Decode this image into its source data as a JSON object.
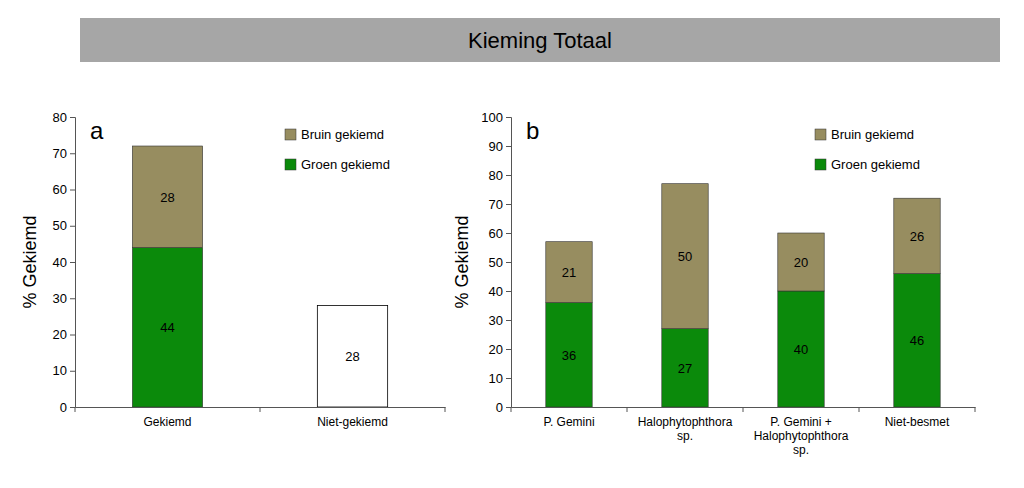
{
  "title": "Kieming Totaal",
  "chart_data": [
    {
      "type": "bar",
      "stacked": true,
      "data_labels": true,
      "grid": false,
      "legend": "top-right",
      "annotations": [
        "a"
      ],
      "y_label": "% Gekiemd",
      "categories": [
        "Gekiemd",
        "Niet-gekiemd"
      ],
      "ylim": [
        0,
        80
      ],
      "yticks": [
        0,
        10,
        20,
        30,
        40,
        50,
        60,
        70,
        80
      ],
      "series": [
        {
          "name": "Groen gekiemd",
          "color": "#0b8a0b",
          "values": [
            44,
            null
          ]
        },
        {
          "name": "Bruin gekiemd",
          "color": "#978d60",
          "values": [
            28,
            null
          ]
        },
        {
          "color": "#ffffff",
          "values": [
            null,
            28
          ]
        }
      ]
    },
    {
      "type": "bar",
      "stacked": true,
      "data_labels": true,
      "grid": false,
      "legend": "top-right",
      "annotations": [
        "b"
      ],
      "y_label": "% Gekiemd",
      "categories": [
        "P. Gemini",
        "Halophytophthora\nsp.",
        "P. Gemini +\nHalophytophthora\nsp.",
        "Niet-besmet"
      ],
      "ylim": [
        0,
        100
      ],
      "yticks": [
        0,
        10,
        20,
        30,
        40,
        50,
        60,
        70,
        80,
        90,
        100
      ],
      "series": [
        {
          "name": "Groen gekiemd",
          "color": "#0b8a0b",
          "values": [
            36,
            27,
            40,
            46
          ]
        },
        {
          "name": "Bruin gekiemd",
          "color": "#978d60",
          "values": [
            21,
            50,
            20,
            26
          ]
        }
      ]
    }
  ]
}
